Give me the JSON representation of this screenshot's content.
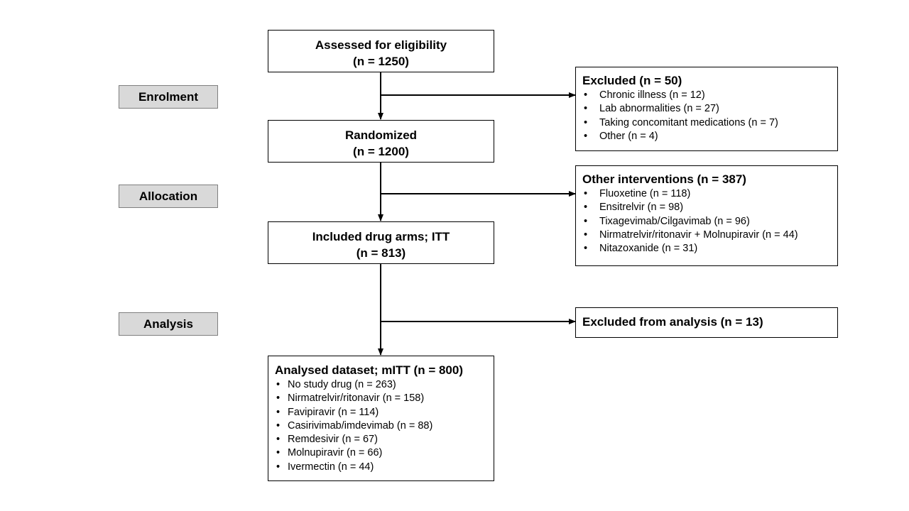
{
  "stages": {
    "enrolment": "Enrolment",
    "allocation": "Allocation",
    "analysis": "Analysis"
  },
  "assessed": {
    "line1": "Assessed for eligibility",
    "line2": "(n = 1250)"
  },
  "randomized": {
    "line1": "Randomized",
    "line2": "(n = 1200)"
  },
  "included": {
    "line1": "Included drug arms; ITT",
    "line2": "(n = 813)"
  },
  "excluded": {
    "title": "Excluded (n = 50)",
    "items": [
      "Chronic illness (n = 12)",
      "Lab abnormalities (n = 27)",
      "Taking concomitant medications (n = 7)",
      "Other (n = 4)"
    ]
  },
  "other_interventions": {
    "title": "Other interventions (n = 387)",
    "items": [
      "Fluoxetine (n = 118)",
      "Ensitrelvir (n = 98)",
      "Tixagevimab/Cilgavimab (n = 96)",
      "Nirmatrelvir/ritonavir + Molnupiravir (n = 44)",
      "Nitazoxanide (n = 31)"
    ]
  },
  "excluded_analysis": {
    "title": "Excluded from analysis (n = 13)"
  },
  "analysed": {
    "title": "Analysed dataset; mITT (n = 800)",
    "items": [
      "No study drug (n = 263)",
      "Nirmatrelvir/ritonavir (n = 158)",
      "Favipiravir (n = 114)",
      "Casirivimab/imdevimab (n = 88)",
      "Remdesivir (n = 67)",
      "Molnupiravir (n = 66)",
      "Ivermectin (n = 44)"
    ]
  }
}
